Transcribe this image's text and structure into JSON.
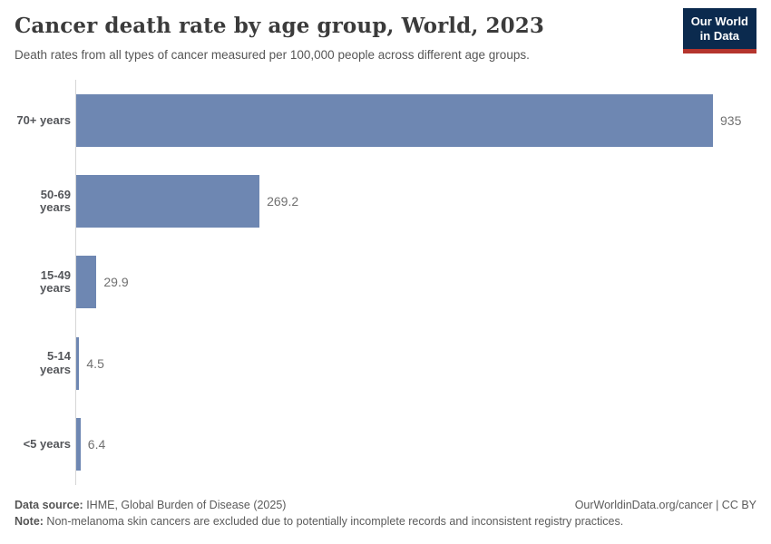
{
  "header": {
    "title": "Cancer death rate by age group, World, 2023",
    "subtitle": "Death rates from all types of cancer measured per 100,000 people across different age groups.",
    "logo": {
      "line1": "Our World",
      "line2": "in Data"
    }
  },
  "chart_data": {
    "type": "bar",
    "orientation": "horizontal",
    "title": "Cancer death rate by age group, World, 2023",
    "categories": [
      "70+ years",
      "50-69 years",
      "15-49 years",
      "5-14 years",
      "<5 years"
    ],
    "values": [
      935,
      269.2,
      29.9,
      4.5,
      6.4
    ],
    "value_labels": [
      "935",
      "269.2",
      "29.9",
      "4.5",
      "6.4"
    ],
    "unit": "deaths per 100,000 people",
    "xlabel": "",
    "ylabel": "",
    "xlim": [
      0,
      935
    ],
    "grid": false,
    "legend": false,
    "bar_color": "#6e87b2",
    "axis_color": "#d6d6d6"
  },
  "footer": {
    "data_source_label": "Data source:",
    "data_source_text": " IHME, Global Burden of Disease (2025)",
    "note_label": "Note:",
    "note_text": " Non-melanoma skin cancers are excluded due to potentially incomplete records and inconsistent registry practices.",
    "link": "OurWorldinData.org/cancer | CC BY"
  },
  "colors": {
    "bar": "#6e87b2",
    "logo_navy": "#0b2a4e",
    "logo_red": "#b5352d",
    "title_text": "#3b3b3b",
    "body_text": "#5b5b5b"
  }
}
